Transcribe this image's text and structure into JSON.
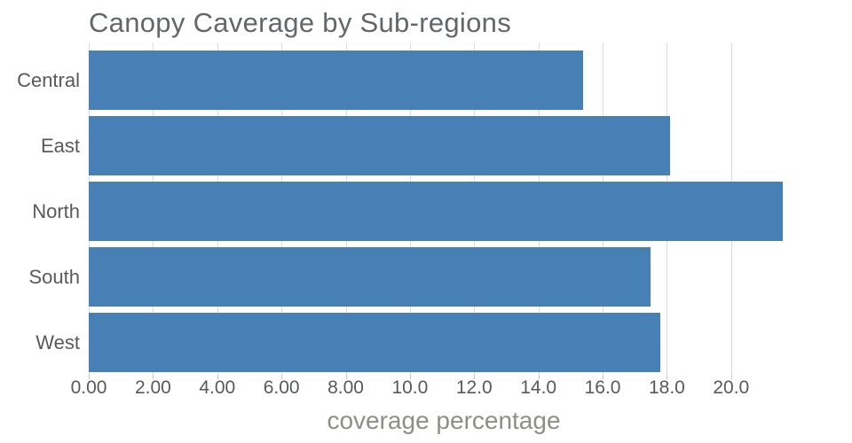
{
  "chart_data": {
    "type": "bar",
    "orientation": "horizontal",
    "title": "Canopy Caverage by Sub-regions",
    "xlabel": "coverage percentage",
    "ylabel": "",
    "categories": [
      "Central",
      "East",
      "North",
      "South",
      "West"
    ],
    "values": [
      15.4,
      18.1,
      21.6,
      17.5,
      17.8
    ],
    "xlim": [
      0,
      23.1
    ],
    "xticks": [
      {
        "value": 0,
        "label": "0.00"
      },
      {
        "value": 2,
        "label": "2.00"
      },
      {
        "value": 4,
        "label": "4.00"
      },
      {
        "value": 6,
        "label": "6.00"
      },
      {
        "value": 8,
        "label": "8.00"
      },
      {
        "value": 10,
        "label": "10.0"
      },
      {
        "value": 12,
        "label": "12.0"
      },
      {
        "value": 14,
        "label": "14.0"
      },
      {
        "value": 16,
        "label": "16.0"
      },
      {
        "value": 18,
        "label": "18.0"
      },
      {
        "value": 20,
        "label": "20.0"
      }
    ],
    "grid": "vertical",
    "legend": false,
    "colors": {
      "bar": "#4780B5",
      "grid": "#DBDBDB",
      "tick_mark": "#C6C6C6",
      "title_text": "#63666B",
      "tick_text": "#57595C",
      "axis_label_text": "#908D86",
      "background": "#FFFFFF"
    }
  }
}
